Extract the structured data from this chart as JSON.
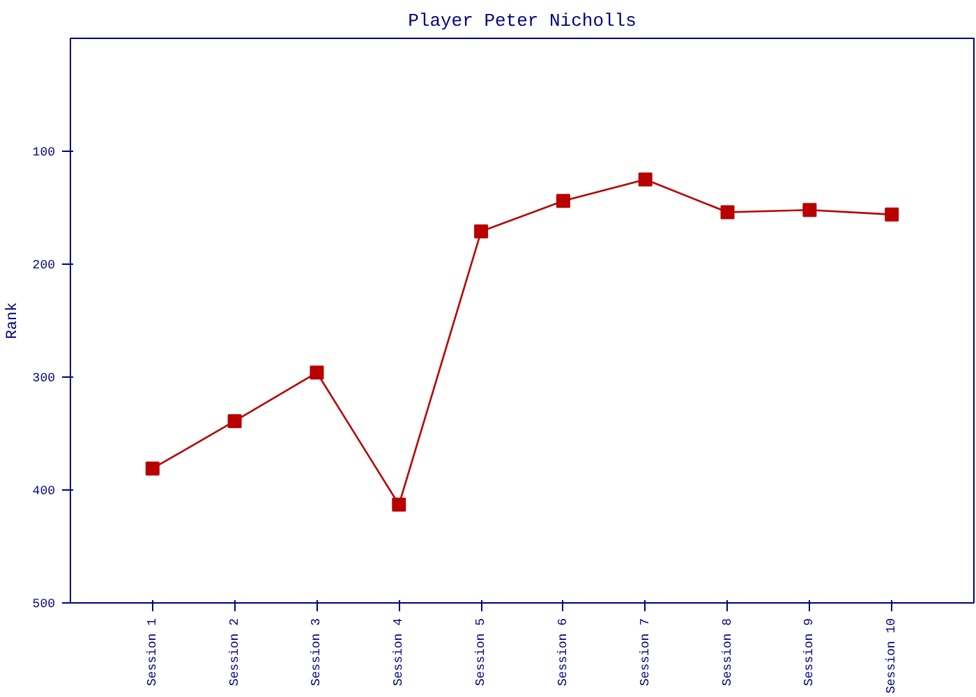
{
  "chart_data": {
    "type": "line",
    "title": "Player Peter Nicholls",
    "ylabel": "Rank",
    "categories": [
      "Session 1",
      "Session 2",
      "Session 3",
      "Session 4",
      "Session 5",
      "Session 6",
      "Session 7",
      "Session 8",
      "Session 9",
      "Session 10"
    ],
    "series": [
      {
        "color": "#b80000",
        "values": [
          381,
          339,
          296,
          413,
          171,
          144,
          125,
          154,
          152,
          156
        ]
      }
    ],
    "ylim": [
      500,
      0
    ],
    "yticks": [
      100,
      200,
      300,
      400,
      500
    ],
    "grid": false,
    "marker": "square",
    "line_style": "solid"
  }
}
